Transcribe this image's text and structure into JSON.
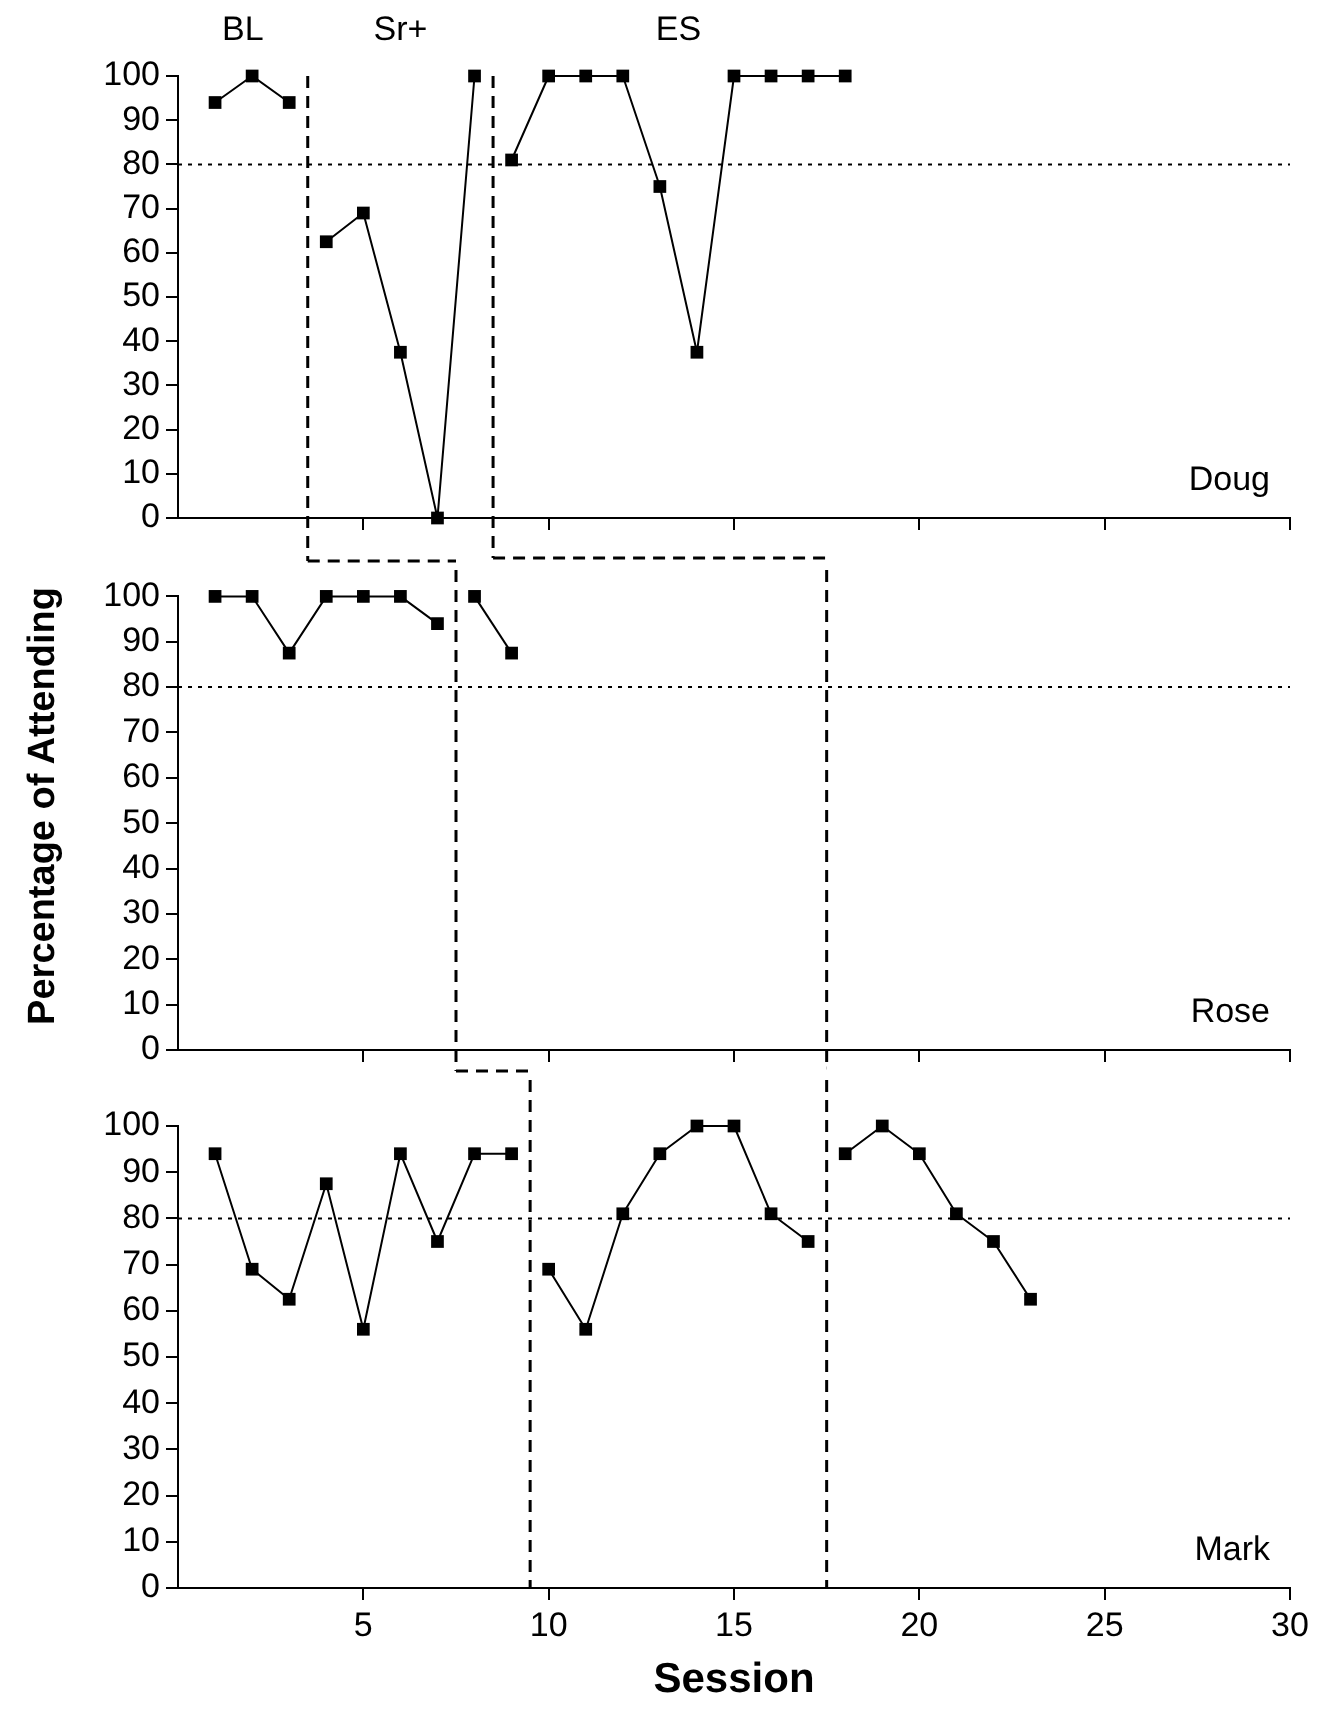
{
  "chart_data": [
    {
      "type": "line",
      "title": "Doug",
      "annotations": [
        "BL",
        "Sr+",
        "ES"
      ],
      "marker": "square",
      "line_style": "solid",
      "grid": false,
      "tick_labels": "y",
      "series": [
        {
          "color": "#000000",
          "x": [
            1,
            2,
            3
          ],
          "values": [
            94,
            100,
            94
          ]
        },
        {
          "color": "#000000",
          "x": [
            4,
            5,
            6,
            7,
            8
          ],
          "values": [
            62.5,
            69,
            37.5,
            0,
            100
          ]
        },
        {
          "color": "#000000",
          "x": [
            9,
            10,
            11,
            12,
            13,
            14,
            15,
            16,
            17,
            18
          ],
          "values": [
            81,
            100,
            100,
            100,
            75,
            37.5,
            100,
            100,
            100,
            100
          ]
        }
      ],
      "xlim": [
        0,
        30
      ],
      "xticks": [
        5,
        10,
        15,
        20,
        25,
        30
      ],
      "ylim": [
        0,
        100
      ],
      "yticks": [
        0,
        10,
        20,
        30,
        40,
        50,
        60,
        70,
        80,
        90,
        100
      ],
      "ref_lines": [
        {
          "axis": "y",
          "value": 80,
          "line_style": "dotted"
        },
        {
          "axis": "x",
          "value": 3.5,
          "line_style": "dashed"
        },
        {
          "axis": "x",
          "value": 8.5,
          "line_style": "dashed"
        }
      ]
    },
    {
      "type": "line",
      "title": "Rose",
      "ylabel": "Percentage of Attending",
      "marker": "square",
      "line_style": "solid",
      "grid": false,
      "tick_labels": "y",
      "series": [
        {
          "color": "#000000",
          "x": [
            1,
            2,
            3,
            4,
            5,
            6,
            7
          ],
          "values": [
            100,
            100,
            87.5,
            100,
            100,
            100,
            94
          ]
        },
        {
          "color": "#000000",
          "x": [
            8,
            9
          ],
          "values": [
            100,
            87.5
          ]
        }
      ],
      "xlim": [
        0,
        30
      ],
      "xticks": [
        5,
        10,
        15,
        20,
        25,
        30
      ],
      "ylim": [
        0,
        100
      ],
      "yticks": [
        0,
        10,
        20,
        30,
        40,
        50,
        60,
        70,
        80,
        90,
        100
      ],
      "ref_lines": [
        {
          "axis": "y",
          "value": 80,
          "line_style": "dotted"
        },
        {
          "axis": "x",
          "value": 7.5,
          "line_style": "dashed"
        },
        {
          "axis": "x",
          "value": 17.5,
          "line_style": "dashed"
        }
      ]
    },
    {
      "type": "line",
      "title": "Mark",
      "xlabel": "Session",
      "marker": "square",
      "line_style": "solid",
      "grid": false,
      "series": [
        {
          "color": "#000000",
          "x": [
            1,
            2,
            3,
            4,
            5,
            6,
            7,
            8,
            9
          ],
          "values": [
            94,
            69,
            62.5,
            87.5,
            56,
            94,
            75,
            94,
            94
          ]
        },
        {
          "color": "#000000",
          "x": [
            10,
            11,
            12,
            13,
            14,
            15,
            16,
            17
          ],
          "values": [
            69,
            56,
            81,
            94,
            100,
            100,
            81,
            75
          ]
        },
        {
          "color": "#000000",
          "x": [
            18,
            19,
            20,
            21,
            22,
            23
          ],
          "values": [
            94,
            100,
            94,
            81,
            75,
            62.5
          ]
        }
      ],
      "xlim": [
        0,
        30
      ],
      "xticks": [
        5,
        10,
        15,
        20,
        25,
        30
      ],
      "ylim": [
        0,
        100
      ],
      "yticks": [
        0,
        10,
        20,
        30,
        40,
        50,
        60,
        70,
        80,
        90,
        100
      ],
      "ref_lines": [
        {
          "axis": "y",
          "value": 80,
          "line_style": "dotted"
        },
        {
          "axis": "x",
          "value": 9.5,
          "line_style": "dashed"
        },
        {
          "axis": "x",
          "value": 17.5,
          "line_style": "dashed"
        }
      ]
    }
  ]
}
